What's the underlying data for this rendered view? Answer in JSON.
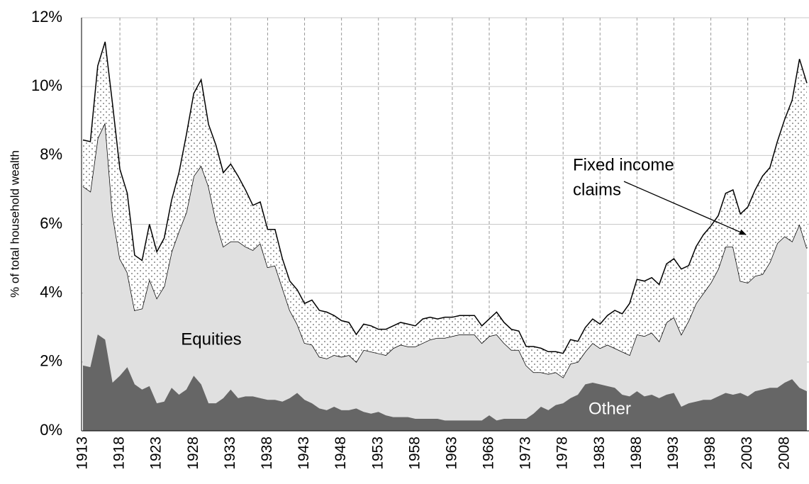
{
  "chart_data": {
    "type": "stacked_area",
    "y_label": "% of total household wealth",
    "x": [
      1913,
      1914,
      1915,
      1916,
      1917,
      1918,
      1919,
      1920,
      1921,
      1922,
      1923,
      1924,
      1925,
      1926,
      1927,
      1928,
      1929,
      1930,
      1931,
      1932,
      1933,
      1934,
      1935,
      1936,
      1937,
      1938,
      1939,
      1940,
      1941,
      1942,
      1943,
      1944,
      1945,
      1946,
      1947,
      1948,
      1949,
      1950,
      1951,
      1952,
      1953,
      1954,
      1955,
      1956,
      1957,
      1958,
      1959,
      1960,
      1961,
      1962,
      1963,
      1964,
      1965,
      1966,
      1967,
      1968,
      1969,
      1970,
      1971,
      1972,
      1973,
      1974,
      1975,
      1976,
      1977,
      1978,
      1979,
      1980,
      1981,
      1982,
      1983,
      1984,
      1985,
      1986,
      1987,
      1988,
      1989,
      1990,
      1991,
      1992,
      1993,
      1994,
      1995,
      1996,
      1997,
      1998,
      1999,
      2000,
      2001,
      2002,
      2003,
      2004,
      2005,
      2006,
      2007,
      2008,
      2009,
      2010,
      2011
    ],
    "xlim": [
      1913,
      2011
    ],
    "xticks": [
      1913,
      1918,
      1923,
      1928,
      1933,
      1938,
      1943,
      1948,
      1953,
      1958,
      1963,
      1968,
      1973,
      1978,
      1983,
      1988,
      1993,
      1998,
      2003,
      2008
    ],
    "ylim": [
      0,
      12
    ],
    "yticks": [
      {
        "value": 0,
        "label": "0%"
      },
      {
        "value": 2,
        "label": "2%"
      },
      {
        "value": 4,
        "label": "4%"
      },
      {
        "value": 6,
        "label": "6%"
      },
      {
        "value": 8,
        "label": "8%"
      },
      {
        "value": 10,
        "label": "10%"
      },
      {
        "value": 12,
        "label": "12%"
      }
    ],
    "grid": true,
    "series": [
      {
        "name": "Other",
        "color": "#666666",
        "values": [
          1.9,
          1.85,
          2.8,
          2.65,
          1.4,
          1.6,
          1.85,
          1.35,
          1.2,
          1.3,
          0.8,
          0.85,
          1.25,
          1.05,
          1.2,
          1.6,
          1.35,
          0.8,
          0.8,
          0.95,
          1.2,
          0.95,
          1.0,
          1.0,
          0.95,
          0.9,
          0.9,
          0.85,
          0.95,
          1.1,
          0.9,
          0.8,
          0.65,
          0.6,
          0.7,
          0.6,
          0.6,
          0.65,
          0.55,
          0.5,
          0.55,
          0.45,
          0.4,
          0.4,
          0.4,
          0.35,
          0.35,
          0.35,
          0.35,
          0.3,
          0.3,
          0.3,
          0.3,
          0.3,
          0.3,
          0.45,
          0.3,
          0.35,
          0.35,
          0.35,
          0.35,
          0.5,
          0.7,
          0.6,
          0.75,
          0.8,
          0.95,
          1.05,
          1.35,
          1.4,
          1.35,
          1.3,
          1.25,
          1.05,
          1.0,
          1.15,
          1.0,
          1.05,
          0.95,
          1.05,
          1.1,
          0.7,
          0.8,
          0.85,
          0.9,
          0.9,
          1.0,
          1.1,
          1.05,
          1.1,
          1.0,
          1.15,
          1.2,
          1.25,
          1.25,
          1.4,
          1.5,
          1.25,
          1.15
        ]
      },
      {
        "name": "Equities",
        "color": "#e0e0e0",
        "values": [
          5.2,
          5.1,
          5.7,
          6.3,
          4.9,
          3.4,
          2.75,
          2.15,
          2.35,
          3.1,
          3.05,
          3.35,
          3.95,
          4.75,
          5.15,
          5.8,
          6.35,
          6.3,
          5.3,
          4.4,
          4.3,
          4.55,
          4.35,
          4.25,
          4.5,
          3.85,
          3.9,
          3.3,
          2.55,
          2.0,
          1.65,
          1.7,
          1.5,
          1.5,
          1.5,
          1.55,
          1.6,
          1.35,
          1.8,
          1.8,
          1.7,
          1.75,
          2.0,
          2.1,
          2.05,
          2.1,
          2.2,
          2.3,
          2.35,
          2.4,
          2.45,
          2.5,
          2.5,
          2.5,
          2.25,
          2.3,
          2.5,
          2.2,
          2.0,
          2.0,
          1.55,
          1.2,
          1.0,
          1.05,
          0.95,
          0.75,
          1.0,
          0.95,
          0.95,
          1.15,
          1.05,
          1.2,
          1.15,
          1.25,
          1.2,
          1.65,
          1.75,
          1.8,
          1.65,
          2.1,
          2.2,
          2.1,
          2.4,
          2.85,
          3.1,
          3.4,
          3.7,
          4.25,
          4.3,
          3.25,
          3.3,
          3.35,
          3.35,
          3.65,
          4.2,
          4.25,
          4.0,
          4.75,
          4.15
        ]
      },
      {
        "name": "Fixed income claims",
        "color": "#ffffff",
        "pattern": "dots",
        "values": [
          1.35,
          1.45,
          2.1,
          2.35,
          3.2,
          2.6,
          2.3,
          1.6,
          1.4,
          1.6,
          1.35,
          1.4,
          1.5,
          1.7,
          2.25,
          2.4,
          2.5,
          1.8,
          2.2,
          2.15,
          2.25,
          1.9,
          1.65,
          1.3,
          1.2,
          1.1,
          1.05,
          0.85,
          0.85,
          1.0,
          1.15,
          1.3,
          1.35,
          1.35,
          1.15,
          1.05,
          0.95,
          0.8,
          0.75,
          0.75,
          0.7,
          0.75,
          0.65,
          0.65,
          0.65,
          0.6,
          0.7,
          0.65,
          0.55,
          0.6,
          0.55,
          0.55,
          0.55,
          0.55,
          0.5,
          0.5,
          0.65,
          0.6,
          0.6,
          0.55,
          0.55,
          0.75,
          0.7,
          0.65,
          0.6,
          0.7,
          0.7,
          0.6,
          0.7,
          0.7,
          0.7,
          0.85,
          1.1,
          1.1,
          1.5,
          1.6,
          1.6,
          1.6,
          1.65,
          1.7,
          1.7,
          1.9,
          1.6,
          1.65,
          1.7,
          1.65,
          1.55,
          1.55,
          1.65,
          1.95,
          2.2,
          2.5,
          2.85,
          2.75,
          2.95,
          3.4,
          4.1,
          4.8,
          4.8
        ]
      }
    ],
    "annotations": [
      {
        "text": "Equities"
      },
      {
        "text": "Other"
      },
      {
        "lines": [
          "Fixed income",
          "claims"
        ]
      }
    ]
  }
}
